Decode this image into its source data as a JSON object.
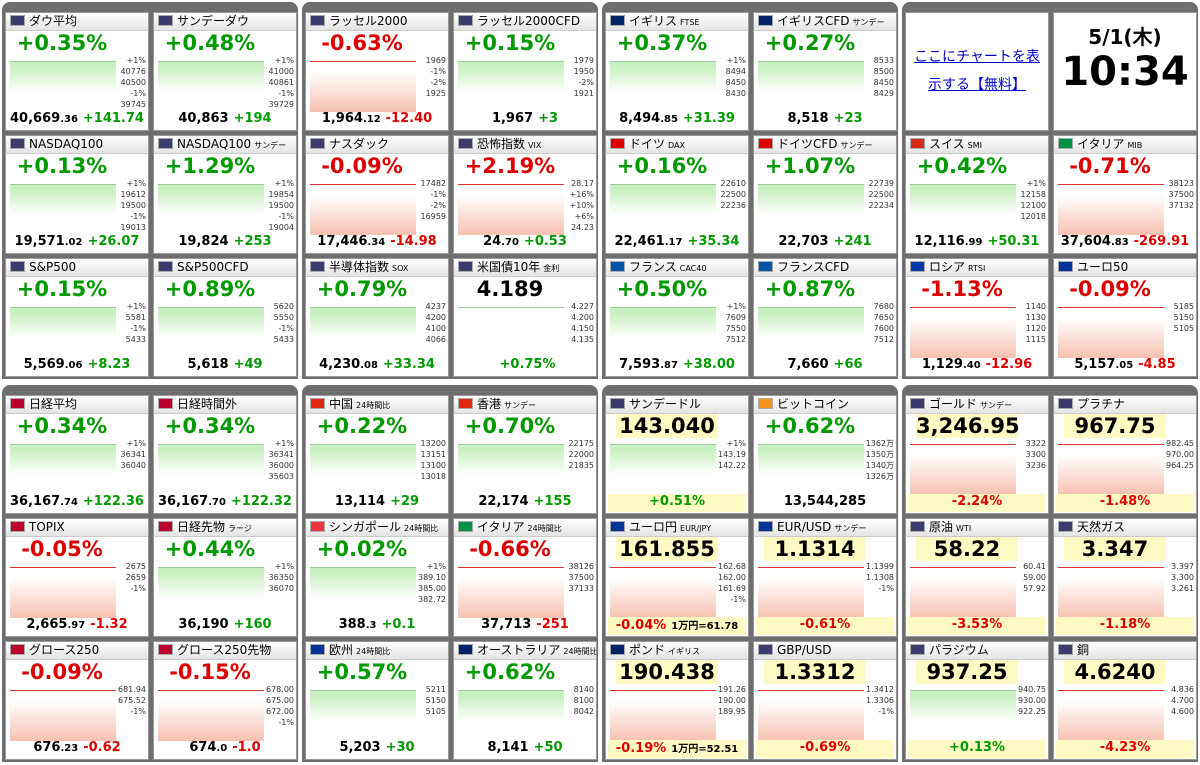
{
  "panels": [
    {
      "tiles": [
        {
          "name": "ダウ平均",
          "head": "+0.35%",
          "foot": "40,669",
          "foot_small": ".36",
          "foot_chg": "+141.74",
          "labels": [
            "+1%",
            "40776",
            "40500",
            "-1%",
            "39745"
          ],
          "trend": "up",
          "flag": "#3c3b6e"
        },
        {
          "name": "サンデーダウ",
          "head": "+0.48%",
          "foot": "40,863",
          "foot_chg": "+194",
          "labels": [
            "+1%",
            "41000",
            "40861",
            "-1%",
            "39729"
          ],
          "trend": "up",
          "flag": "#3c3b6e"
        },
        {
          "name": "NASDAQ100",
          "head": "+0.13%",
          "foot": "19,571",
          "foot_small": ".02",
          "foot_chg": "+26.07",
          "labels": [
            "+1%",
            "19612",
            "19500",
            "-1%",
            "19013"
          ],
          "trend": "up",
          "flag": "#3c3b6e"
        },
        {
          "name": "NASDAQ100",
          "sub": "サンデー",
          "head": "+1.29%",
          "foot": "19,824",
          "foot_chg": "+253",
          "labels": [
            "+1%",
            "19854",
            "19500",
            "-1%",
            "19004"
          ],
          "trend": "up",
          "flag": "#3c3b6e"
        },
        {
          "name": "S&P500",
          "head": "+0.15%",
          "foot": "5,569",
          "foot_small": ".06",
          "foot_chg": "+8.23",
          "labels": [
            "+1%",
            "5581",
            "-1%",
            "5433"
          ],
          "trend": "up",
          "flag": "#3c3b6e"
        },
        {
          "name": "S&P500CFD",
          "head": "+0.89%",
          "foot": "5,618",
          "foot_chg": "+49",
          "labels": [
            "5620",
            "5550",
            "-1%",
            "5433"
          ],
          "trend": "up",
          "flag": "#3c3b6e"
        }
      ]
    },
    {
      "tiles": [
        {
          "name": "ラッセル2000",
          "head": "-0.63%",
          "foot": "1,964",
          "foot_small": ".12",
          "foot_chg": "-12.40",
          "labels": [
            "1969",
            "-1%",
            "-2%",
            "1925"
          ],
          "trend": "down",
          "flag": "#3c3b6e"
        },
        {
          "name": "ラッセル2000CFD",
          "head": "+0.15%",
          "foot": "1,967",
          "foot_chg": "+3",
          "labels": [
            "1979",
            "1950",
            "-2%",
            "1921"
          ],
          "trend": "up",
          "flag": "#3c3b6e"
        },
        {
          "name": "ナスダック",
          "head": "-0.09%",
          "foot": "17,446",
          "foot_small": ".34",
          "foot_chg": "-14.98",
          "labels": [
            "17482",
            "-1%",
            "-2%",
            "16959"
          ],
          "trend": "down",
          "flag": "#3c3b6e"
        },
        {
          "name": "恐怖指数",
          "sub": "VIX",
          "head": "+2.19%",
          "foot": "24",
          "foot_small": ".70",
          "foot_chg": "+0.53",
          "labels": [
            "28.17",
            "+16%",
            "+10%",
            "+6%",
            "24.23"
          ],
          "trend": "down",
          "flag": "#3c3b6e"
        },
        {
          "name": "半導体指数",
          "sub": "SOX",
          "head": "+0.79%",
          "foot": "4,230",
          "foot_small": ".08",
          "foot_chg": "+33.34",
          "labels": [
            "4237",
            "4200",
            "4100",
            "4066"
          ],
          "trend": "up",
          "flag": "#3c3b6e"
        },
        {
          "name": "米国債10年",
          "sub": "金利",
          "head": "4.189",
          "foot_chg": "+0.75%",
          "labels": [
            "4.227",
            "4.200",
            "4.150",
            "4.135"
          ],
          "trend": "flat",
          "flag": "#3c3b6e"
        }
      ]
    },
    {
      "tiles": [
        {
          "name": "イギリス",
          "sub": "FTSE",
          "head": "+0.37%",
          "foot": "8,494",
          "foot_small": ".85",
          "foot_chg": "+31.39",
          "labels": [
            "+1%",
            "8494",
            "8450",
            "8430"
          ],
          "trend": "up",
          "flag": "#012169"
        },
        {
          "name": "イギリスCFD",
          "sub": "サンデー",
          "head": "+0.27%",
          "foot": "8,518",
          "foot_chg": "+23",
          "labels": [
            "8533",
            "8500",
            "8450",
            "8429"
          ],
          "trend": "up",
          "flag": "#012169"
        },
        {
          "name": "ドイツ",
          "sub": "DAX",
          "head": "+0.16%",
          "foot": "22,461",
          "foot_small": ".17",
          "foot_chg": "+35.34",
          "labels": [
            "22610",
            "22500",
            "22236"
          ],
          "trend": "up",
          "flag": "#dd0000"
        },
        {
          "name": "ドイツCFD",
          "sub": "サンデー",
          "head": "+1.07%",
          "foot": "22,703",
          "foot_chg": "+241",
          "labels": [
            "22739",
            "22500",
            "22234"
          ],
          "trend": "up",
          "flag": "#dd0000"
        },
        {
          "name": "フランス",
          "sub": "CAC40",
          "head": "+0.50%",
          "foot": "7,593",
          "foot_small": ".87",
          "foot_chg": "+38.00",
          "labels": [
            "+1%",
            "7609",
            "7550",
            "7512"
          ],
          "trend": "up",
          "flag": "#0055a4"
        },
        {
          "name": "フランスCFD",
          "head": "+0.87%",
          "foot": "7,660",
          "foot_chg": "+66",
          "labels": [
            "7680",
            "7650",
            "7600",
            "7512"
          ],
          "trend": "up",
          "flag": "#0055a4"
        }
      ]
    },
    {
      "link": "ここにチャートを表示する【無料】",
      "date": "5/1(木)",
      "time": "10:34",
      "tiles": [
        {
          "name": "スイス",
          "sub": "SMI",
          "head": "+0.42%",
          "foot": "12,116",
          "foot_small": ".99",
          "foot_chg": "+50.31",
          "labels": [
            "+1%",
            "12158",
            "12100",
            "12018"
          ],
          "trend": "up",
          "flag": "#d52b1e"
        },
        {
          "name": "イタリア",
          "sub": "MIB",
          "head": "-0.71%",
          "foot": "37,604",
          "foot_small": ".83",
          "foot_chg": "-269.91",
          "labels": [
            "38123",
            "37500",
            "37132"
          ],
          "trend": "down",
          "flag": "#009246"
        },
        {
          "name": "ロシア",
          "sub": "RTSI",
          "head": "-1.13%",
          "foot": "1,129",
          "foot_small": ".40",
          "foot_chg": "-12.96",
          "labels": [
            "1140",
            "1130",
            "1120",
            "1115"
          ],
          "trend": "down",
          "flag": "#0039a6"
        },
        {
          "name": "ユーロ50",
          "head": "-0.09%",
          "foot": "5,157",
          "foot_small": ".05",
          "foot_chg": "-4.85",
          "labels": [
            "5185",
            "5150",
            "5105"
          ],
          "trend": "down",
          "flag": "#003399"
        }
      ]
    },
    {
      "tiles": [
        {
          "name": "日経平均",
          "head": "+0.34%",
          "foot": "36,167",
          "foot_small": ".74",
          "foot_chg": "+122.36",
          "labels": [
            "+1%",
            "36341",
            "36040"
          ],
          "trend": "up",
          "flag": "#bc002d"
        },
        {
          "name": "日経時間外",
          "head": "+0.34%",
          "foot": "36,167",
          "foot_small": ".70",
          "foot_chg": "+122.32",
          "labels": [
            "+1%",
            "36341",
            "36000",
            "35603"
          ],
          "trend": "up",
          "flag": "#bc002d"
        },
        {
          "name": "TOPIX",
          "head": "-0.05%",
          "foot": "2,665",
          "foot_small": ".97",
          "foot_chg": "-1.32",
          "labels": [
            "2675",
            "2659",
            "-1%"
          ],
          "trend": "down",
          "flag": "#bc002d"
        },
        {
          "name": "日経先物",
          "sub": "ラージ",
          "head": "+0.44%",
          "foot": "36,190",
          "foot_chg": "+160",
          "labels": [
            "+1%",
            "36350",
            "36070"
          ],
          "trend": "up",
          "flag": "#bc002d"
        },
        {
          "name": "グロース250",
          "head": "-0.09%",
          "foot": "676",
          "foot_small": ".23",
          "foot_chg": "-0.62",
          "labels": [
            "681.94",
            "675.52",
            "-1%"
          ],
          "trend": "down",
          "flag": "#bc002d"
        },
        {
          "name": "グロース250先物",
          "head": "-0.15%",
          "foot": "674",
          "foot_small": ".0",
          "foot_chg": "-1.0",
          "labels": [
            "678.00",
            "675.00",
            "672.00",
            "-1%"
          ],
          "trend": "down",
          "flag": "#bc002d"
        }
      ]
    },
    {
      "tiles": [
        {
          "name": "中国",
          "sub": "24時間比",
          "head": "+0.22%",
          "foot": "13,114",
          "foot_chg": "+29",
          "labels": [
            "13200",
            "13151",
            "13100",
            "13018"
          ],
          "trend": "up",
          "flag": "#de2910"
        },
        {
          "name": "香港",
          "sub": "サンデー",
          "head": "+0.70%",
          "foot": "22,174",
          "foot_chg": "+155",
          "labels": [
            "22175",
            "22000",
            "21835"
          ],
          "trend": "up",
          "flag": "#de2910"
        },
        {
          "name": "シンガポール",
          "sub": "24時間比",
          "head": "+0.02%",
          "foot": "388",
          "foot_small": ".3",
          "foot_chg": "+0.1",
          "labels": [
            "+1%",
            "389.10",
            "385.00",
            "382.72"
          ],
          "trend": "up",
          "flag": "#ef3340"
        },
        {
          "name": "イタリア",
          "sub": "24時間比",
          "head": "-0.66%",
          "foot": "37,713",
          "foot_chg": "-251",
          "labels": [
            "38126",
            "37500",
            "37133"
          ],
          "trend": "down",
          "flag": "#009246"
        },
        {
          "name": "欧州",
          "sub": "24時間比",
          "head": "+0.57%",
          "foot": "5,203",
          "foot_chg": "+30",
          "labels": [
            "5211",
            "5150",
            "5105"
          ],
          "trend": "up",
          "flag": "#003399"
        },
        {
          "name": "オーストラリア",
          "sub": "24時間比",
          "head": "+0.62%",
          "foot": "8,141",
          "foot_chg": "+50",
          "labels": [
            "8140",
            "8100",
            "8042"
          ],
          "trend": "up",
          "flag": "#012169"
        }
      ]
    },
    {
      "tiles": [
        {
          "name": "サンデードル",
          "head": "143.040",
          "foot": "+0.51%",
          "labels": [
            "+1%",
            "143.19",
            "142.22"
          ],
          "trend": "up",
          "price": true,
          "flag": "#3c3b6e"
        },
        {
          "name": "ビットコイン",
          "head": "+0.62%",
          "foot": "13,544,285",
          "labels": [
            "1362万",
            "1350万",
            "1340万",
            "1326万"
          ],
          "trend": "up",
          "flag": "#f7931a"
        },
        {
          "name": "ユーロ円",
          "sub": "EUR/JPY",
          "head": "161.855",
          "foot": "-0.04%",
          "foot_chg": "1万円=61.78",
          "labels": [
            "162.68",
            "162.00",
            "161.69",
            "-1%"
          ],
          "trend": "down",
          "price": true,
          "flag": "#003399"
        },
        {
          "name": "EUR/USD",
          "sub": "サンデー",
          "head": "1.1314",
          "foot": "-0.61%",
          "labels": [
            "1.1399",
            "1.1308",
            "-1%"
          ],
          "trend": "down",
          "price": true,
          "flag": "#003399"
        },
        {
          "name": "ポンド",
          "sub": "イギリス",
          "head": "190.438",
          "foot": "-0.19%",
          "foot_chg": "1万円=52.51",
          "labels": [
            "191.26",
            "190.00",
            "189.95"
          ],
          "trend": "down",
          "price": true,
          "flag": "#012169"
        },
        {
          "name": "GBP/USD",
          "head": "1.3312",
          "foot": "-0.69%",
          "labels": [
            "1.3412",
            "1.3306",
            "-1%"
          ],
          "trend": "down",
          "price": true,
          "flag": "#3c3b6e"
        }
      ]
    },
    {
      "tiles": [
        {
          "name": "ゴールド",
          "sub": "サンデー",
          "head": "3,246.95",
          "foot": "-2.24%",
          "labels": [
            "3322",
            "3300",
            "3236"
          ],
          "trend": "down",
          "price": true,
          "flag": "#3c3b6e"
        },
        {
          "name": "プラチナ",
          "head": "967.75",
          "foot": "-1.48%",
          "labels": [
            "982.45",
            "970.00",
            "964.25"
          ],
          "trend": "down",
          "price": true,
          "flag": "#3c3b6e"
        },
        {
          "name": "原油",
          "sub": "WTI",
          "head": "58.22",
          "foot": "-3.53%",
          "labels": [
            "60.41",
            "59.00",
            "57.92"
          ],
          "trend": "down",
          "price": true,
          "flag": "#3c3b6e"
        },
        {
          "name": "天然ガス",
          "head": "3.347",
          "foot": "-1.18%",
          "labels": [
            "3.397",
            "3.300",
            "3.261"
          ],
          "trend": "down",
          "price": true,
          "flag": "#3c3b6e"
        },
        {
          "name": "パラジウム",
          "head": "937.25",
          "foot": "+0.13%",
          "labels": [
            "940.75",
            "930.00",
            "922.25"
          ],
          "trend": "up",
          "price": true,
          "flag": "#3c3b6e"
        },
        {
          "name": "銅",
          "head": "4.6240",
          "foot": "-4.23%",
          "labels": [
            "4.836",
            "4.700",
            "4.600"
          ],
          "trend": "down",
          "price": true,
          "flag": "#3c3b6e"
        }
      ]
    }
  ]
}
